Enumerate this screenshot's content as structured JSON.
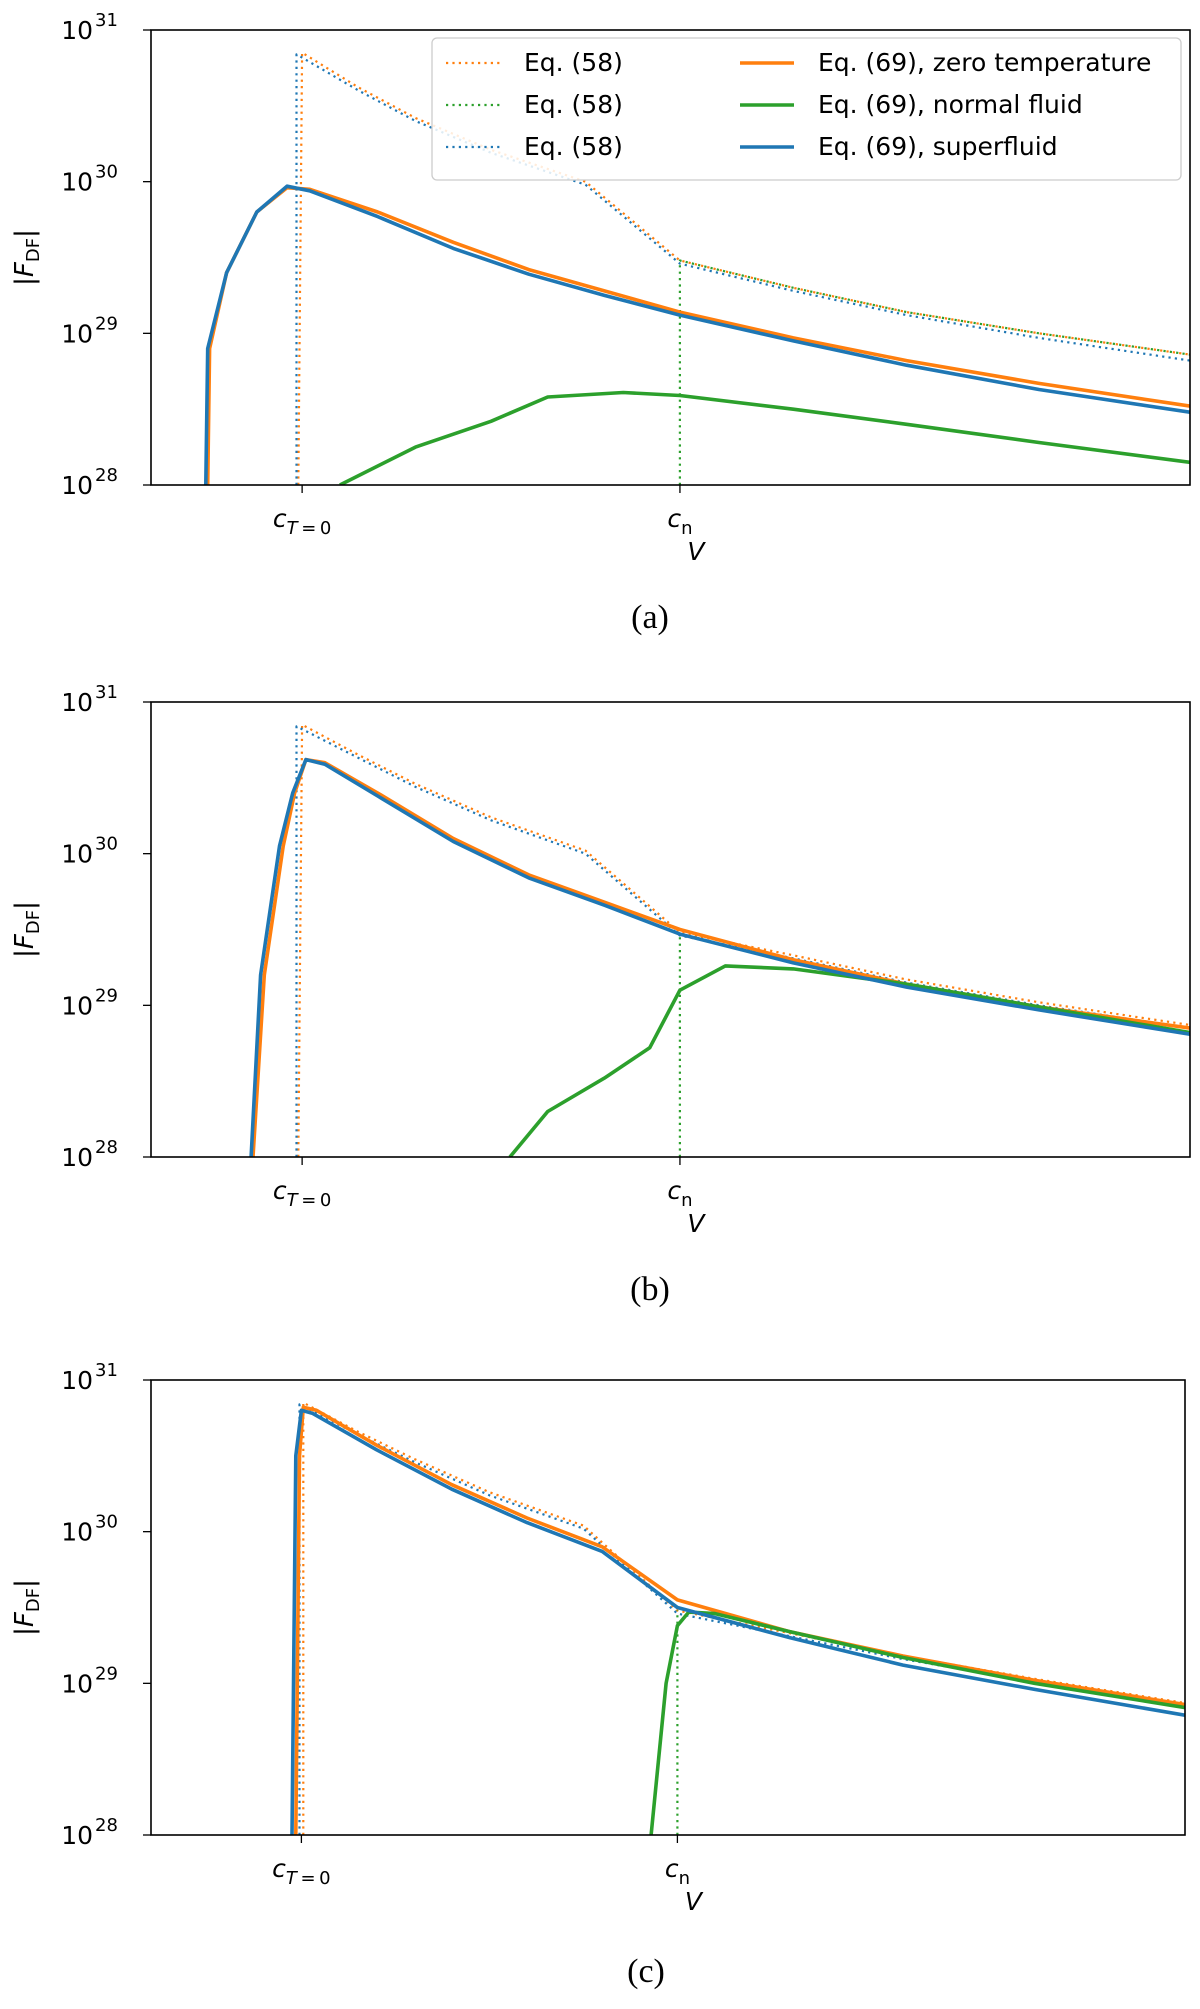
{
  "chart_data": [
    {
      "type": "line",
      "panel": "(a)",
      "caption": "(a)",
      "ylabel": "|F_DF|",
      "xlabel": "V",
      "yscale": "log",
      "ylim_exp": [
        28,
        31
      ],
      "y_tick_exponents": [
        28,
        29,
        30,
        31
      ],
      "x_ticks": [
        {
          "label": "c_T=0",
          "value": 1.0
        },
        {
          "label": "c_n",
          "value": 2.0
        }
      ],
      "xlim": [
        0.6,
        3.35
      ],
      "legend": "top-right",
      "series": [
        {
          "name": "Eq. (58)",
          "color": "#ff7f0e",
          "style": "dotted",
          "points": [
            [
              0.99,
              28.0
            ],
            [
              1.0,
              30.85
            ],
            [
              1.15,
              30.62
            ],
            [
              1.3,
              30.42
            ],
            [
              1.5,
              30.21
            ],
            [
              1.75,
              30.0
            ],
            [
              2.0,
              29.48
            ],
            [
              2.3,
              29.3
            ],
            [
              2.6,
              29.14
            ],
            [
              2.95,
              29.0
            ],
            [
              3.35,
              28.86
            ]
          ]
        },
        {
          "name": "Eq. (58)",
          "color": "#2ca02c",
          "style": "dotted",
          "points": [
            [
              2.0,
              28.0
            ],
            [
              2.0,
              29.48
            ],
            [
              2.3,
              29.3
            ],
            [
              2.6,
              29.14
            ],
            [
              2.95,
              29.0
            ],
            [
              3.35,
              28.86
            ]
          ]
        },
        {
          "name": "Eq. (58)",
          "color": "#1f77b4",
          "style": "dotted",
          "points": [
            [
              0.985,
              28.0
            ],
            [
              0.985,
              30.84
            ],
            [
              1.15,
              30.6
            ],
            [
              1.3,
              30.4
            ],
            [
              1.5,
              30.19
            ],
            [
              1.75,
              29.98
            ],
            [
              2.0,
              29.46
            ],
            [
              2.3,
              29.28
            ],
            [
              2.6,
              29.12
            ],
            [
              2.95,
              28.97
            ],
            [
              3.35,
              28.82
            ]
          ]
        },
        {
          "name": "Eq. (69), zero temperature",
          "color": "#ff7f0e",
          "style": "solid",
          "points": [
            [
              0.75,
              28.0
            ],
            [
              0.755,
              28.9
            ],
            [
              0.8,
              29.4
            ],
            [
              0.88,
              29.8
            ],
            [
              0.96,
              29.96
            ],
            [
              1.02,
              29.95
            ],
            [
              1.2,
              29.8
            ],
            [
              1.4,
              29.6
            ],
            [
              1.6,
              29.42
            ],
            [
              1.8,
              29.28
            ],
            [
              2.0,
              29.14
            ],
            [
              2.3,
              28.97
            ],
            [
              2.6,
              28.82
            ],
            [
              2.95,
              28.67
            ],
            [
              3.35,
              28.52
            ]
          ]
        },
        {
          "name": "Eq. (69), normal fluid",
          "color": "#2ca02c",
          "style": "solid",
          "points": [
            [
              1.1,
              28.0
            ],
            [
              1.3,
              28.25
            ],
            [
              1.5,
              28.42
            ],
            [
              1.65,
              28.58
            ],
            [
              1.85,
              28.61
            ],
            [
              2.0,
              28.59
            ],
            [
              2.3,
              28.5
            ],
            [
              2.6,
              28.4
            ],
            [
              2.95,
              28.28
            ],
            [
              3.35,
              28.15
            ]
          ]
        },
        {
          "name": "Eq. (69), superfluid",
          "color": "#1f77b4",
          "style": "solid",
          "points": [
            [
              0.745,
              28.0
            ],
            [
              0.75,
              28.9
            ],
            [
              0.8,
              29.4
            ],
            [
              0.88,
              29.8
            ],
            [
              0.96,
              29.97
            ],
            [
              1.02,
              29.94
            ],
            [
              1.2,
              29.77
            ],
            [
              1.4,
              29.56
            ],
            [
              1.6,
              29.39
            ],
            [
              1.8,
              29.25
            ],
            [
              2.0,
              29.12
            ],
            [
              2.3,
              28.95
            ],
            [
              2.6,
              28.79
            ],
            [
              2.95,
              28.63
            ],
            [
              3.35,
              28.48
            ]
          ]
        }
      ]
    },
    {
      "type": "line",
      "panel": "(b)",
      "caption": "(b)",
      "ylabel": "|F_DF|",
      "xlabel": "V",
      "yscale": "log",
      "ylim_exp": [
        28,
        31
      ],
      "y_tick_exponents": [
        28,
        29,
        30,
        31
      ],
      "x_ticks": [
        {
          "label": "c_T=0",
          "value": 1.0
        },
        {
          "label": "c_n",
          "value": 2.0
        }
      ],
      "xlim": [
        0.6,
        3.35
      ],
      "series": [
        {
          "name": "Eq. (58)",
          "color": "#ff7f0e",
          "style": "dotted",
          "points": [
            [
              0.99,
              28.0
            ],
            [
              1.0,
              30.85
            ],
            [
              1.15,
              30.65
            ],
            [
              1.3,
              30.46
            ],
            [
              1.5,
              30.24
            ],
            [
              1.75,
              30.02
            ],
            [
              2.0,
              29.48
            ],
            [
              2.3,
              29.33
            ],
            [
              2.6,
              29.17
            ],
            [
              2.95,
              29.02
            ],
            [
              3.35,
              28.87
            ]
          ]
        },
        {
          "name": "Eq. (58)",
          "color": "#2ca02c",
          "style": "dotted",
          "points": [
            [
              2.0,
              28.0
            ],
            [
              2.0,
              29.48
            ]
          ]
        },
        {
          "name": "Eq. (58)",
          "color": "#1f77b4",
          "style": "dotted",
          "points": [
            [
              0.985,
              28.0
            ],
            [
              0.985,
              30.84
            ],
            [
              1.15,
              30.63
            ],
            [
              1.3,
              30.44
            ],
            [
              1.5,
              30.22
            ],
            [
              1.75,
              30.0
            ],
            [
              2.0,
              29.46
            ],
            [
              2.3,
              29.31
            ],
            [
              2.6,
              29.15
            ],
            [
              2.95,
              29.0
            ],
            [
              3.35,
              28.85
            ]
          ]
        },
        {
          "name": "Eq. (69), zero temperature",
          "color": "#ff7f0e",
          "style": "solid",
          "points": [
            [
              0.87,
              28.0
            ],
            [
              0.9,
              29.2
            ],
            [
              0.95,
              30.05
            ],
            [
              0.98,
              30.4
            ],
            [
              1.01,
              30.62
            ],
            [
              1.06,
              30.6
            ],
            [
              1.2,
              30.4
            ],
            [
              1.4,
              30.1
            ],
            [
              1.6,
              29.86
            ],
            [
              1.8,
              29.68
            ],
            [
              2.0,
              29.5
            ],
            [
              2.3,
              29.3
            ],
            [
              2.6,
              29.14
            ],
            [
              2.95,
              28.99
            ],
            [
              3.35,
              28.85
            ]
          ]
        },
        {
          "name": "Eq. (69), normal fluid",
          "color": "#2ca02c",
          "style": "solid",
          "points": [
            [
              1.55,
              28.0
            ],
            [
              1.65,
              28.3
            ],
            [
              1.8,
              28.52
            ],
            [
              1.92,
              28.72
            ],
            [
              2.0,
              29.1
            ],
            [
              2.12,
              29.26
            ],
            [
              2.3,
              29.24
            ],
            [
              2.6,
              29.14
            ],
            [
              2.95,
              28.99
            ],
            [
              3.35,
              28.82
            ]
          ]
        },
        {
          "name": "Eq. (69), superfluid",
          "color": "#1f77b4",
          "style": "solid",
          "points": [
            [
              0.865,
              28.0
            ],
            [
              0.89,
              29.2
            ],
            [
              0.94,
              30.05
            ],
            [
              0.975,
              30.4
            ],
            [
              1.01,
              30.62
            ],
            [
              1.06,
              30.59
            ],
            [
              1.2,
              30.38
            ],
            [
              1.4,
              30.08
            ],
            [
              1.6,
              29.84
            ],
            [
              1.8,
              29.66
            ],
            [
              2.0,
              29.47
            ],
            [
              2.3,
              29.28
            ],
            [
              2.6,
              29.12
            ],
            [
              2.95,
              28.97
            ],
            [
              3.35,
              28.81
            ]
          ]
        }
      ]
    },
    {
      "type": "line",
      "panel": "(c)",
      "caption": "(c)",
      "ylabel": "|F_DF|",
      "xlabel": "V",
      "yscale": "log",
      "ylim_exp": [
        28,
        31
      ],
      "y_tick_exponents": [
        28,
        29,
        30,
        31
      ],
      "x_ticks": [
        {
          "label": "c_T=0",
          "value": 1.0
        },
        {
          "label": "c_n",
          "value": 2.0
        }
      ],
      "xlim": [
        0.6,
        3.35
      ],
      "series": [
        {
          "name": "Eq. (58)",
          "color": "#ff7f0e",
          "style": "dotted",
          "points": [
            [
              1.005,
              28.0
            ],
            [
              1.005,
              30.85
            ],
            [
              1.15,
              30.66
            ],
            [
              1.3,
              30.48
            ],
            [
              1.5,
              30.26
            ],
            [
              1.75,
              30.04
            ],
            [
              2.0,
              29.48
            ],
            [
              2.3,
              29.33
            ],
            [
              2.6,
              29.18
            ],
            [
              2.95,
              29.03
            ],
            [
              3.35,
              28.87
            ]
          ]
        },
        {
          "name": "Eq. (58)",
          "color": "#2ca02c",
          "style": "dotted",
          "points": [
            [
              2.0,
              28.0
            ],
            [
              2.0,
              29.48
            ]
          ]
        },
        {
          "name": "Eq. (58)",
          "color": "#1f77b4",
          "style": "dotted",
          "points": [
            [
              0.995,
              28.0
            ],
            [
              0.995,
              30.84
            ],
            [
              1.15,
              30.64
            ],
            [
              1.3,
              30.46
            ],
            [
              1.5,
              30.24
            ],
            [
              1.75,
              30.02
            ],
            [
              2.0,
              29.46
            ],
            [
              2.3,
              29.31
            ],
            [
              2.6,
              29.16
            ],
            [
              2.95,
              29.01
            ],
            [
              3.35,
              28.85
            ]
          ]
        },
        {
          "name": "Eq. (69), zero temperature",
          "color": "#ff7f0e",
          "style": "solid",
          "points": [
            [
              0.985,
              28.0
            ],
            [
              0.995,
              30.5
            ],
            [
              1.005,
              30.82
            ],
            [
              1.04,
              30.8
            ],
            [
              1.2,
              30.57
            ],
            [
              1.4,
              30.31
            ],
            [
              1.6,
              30.09
            ],
            [
              1.8,
              29.9
            ],
            [
              2.0,
              29.55
            ],
            [
              2.3,
              29.34
            ],
            [
              2.6,
              29.18
            ],
            [
              2.95,
              29.02
            ],
            [
              3.35,
              28.86
            ]
          ]
        },
        {
          "name": "Eq. (69), normal fluid",
          "color": "#2ca02c",
          "style": "solid",
          "points": [
            [
              1.93,
              28.0
            ],
            [
              1.97,
              29.0
            ],
            [
              2.0,
              29.38
            ],
            [
              2.03,
              29.47
            ],
            [
              2.1,
              29.46
            ],
            [
              2.3,
              29.34
            ],
            [
              2.6,
              29.17
            ],
            [
              2.95,
              29.0
            ],
            [
              3.35,
              28.84
            ]
          ]
        },
        {
          "name": "Eq. (69), superfluid",
          "color": "#1f77b4",
          "style": "solid",
          "points": [
            [
              0.975,
              28.0
            ],
            [
              0.985,
              30.5
            ],
            [
              1.0,
              30.8
            ],
            [
              1.03,
              30.78
            ],
            [
              1.2,
              30.54
            ],
            [
              1.4,
              30.28
            ],
            [
              1.6,
              30.06
            ],
            [
              1.8,
              29.87
            ],
            [
              2.0,
              29.5
            ],
            [
              2.3,
              29.3
            ],
            [
              2.6,
              29.12
            ],
            [
              2.95,
              28.96
            ],
            [
              3.35,
              28.79
            ]
          ]
        }
      ]
    }
  ],
  "legend_entries": [
    {
      "label": "Eq. (58)",
      "color": "#ff7f0e",
      "style": "dotted"
    },
    {
      "label": "Eq. (58)",
      "color": "#2ca02c",
      "style": "dotted"
    },
    {
      "label": "Eq. (58)",
      "color": "#1f77b4",
      "style": "dotted"
    },
    {
      "label": "Eq. (69), zero temperature",
      "color": "#ff7f0e",
      "style": "solid"
    },
    {
      "label": "Eq. (69), normal fluid",
      "color": "#2ca02c",
      "style": "solid"
    },
    {
      "label": "Eq. (69), superfluid",
      "color": "#1f77b4",
      "style": "solid"
    }
  ]
}
